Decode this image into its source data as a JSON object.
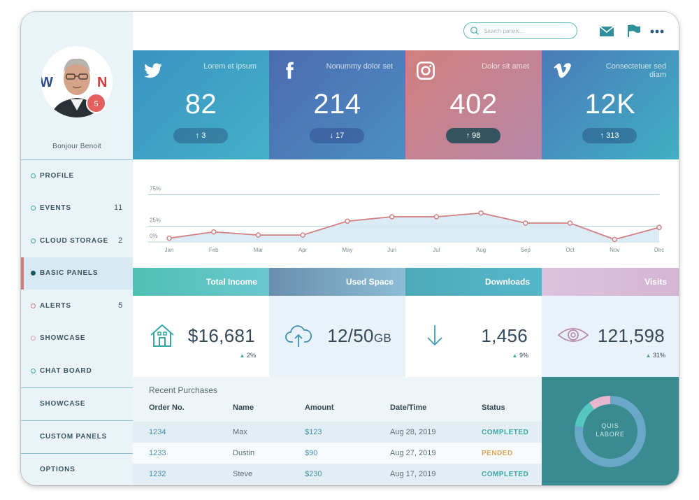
{
  "search": {
    "placeholder": "Search panels..."
  },
  "topbar_icons": [
    "mail-icon",
    "flag-icon",
    "more-icon"
  ],
  "profile": {
    "greeting": "Bonjour Benoit",
    "notifications": "5"
  },
  "nav": [
    {
      "label": "PROFILE",
      "count": ""
    },
    {
      "label": "EVENTS",
      "count": "11"
    },
    {
      "label": "CLOUD STORAGE",
      "count": "2"
    },
    {
      "label": "BASIC PANELS",
      "count": ""
    },
    {
      "label": "ALERTS",
      "count": "5"
    },
    {
      "label": "SHOWCASE",
      "count": ""
    },
    {
      "label": "CHAT BOARD",
      "count": ""
    },
    {
      "label": "SHOWCASE",
      "count": ""
    },
    {
      "label": "CUSTOM PANELS",
      "count": ""
    },
    {
      "label": "OPTIONS",
      "count": ""
    }
  ],
  "tiles": [
    {
      "icon": "twitter-icon",
      "desc": "Lorem et ipsum",
      "value": "82",
      "change": "↑ 3"
    },
    {
      "icon": "facebook-icon",
      "desc": "Nonummy dolor set",
      "value": "214",
      "change": "↓ 17"
    },
    {
      "icon": "instagram-icon",
      "desc": "Dolor sit amet",
      "value": "402",
      "change": "↑ 98"
    },
    {
      "icon": "vimeo-icon",
      "desc": "Consectetuer sed diam",
      "value": "12K",
      "change": "↑ 313"
    }
  ],
  "chart_data": {
    "type": "area",
    "categories": [
      "Jan",
      "Feb",
      "Mar",
      "Apr",
      "May",
      "Jun",
      "Jul",
      "Aug",
      "Sep",
      "Oct",
      "Nov",
      "Dec"
    ],
    "values": [
      6,
      16,
      11,
      11,
      33,
      40,
      40,
      46,
      30,
      30,
      4,
      23
    ],
    "ylim": [
      0,
      100
    ],
    "yticks": [
      "0%",
      "25%",
      "75%"
    ],
    "grid": true,
    "line_color": "#d48081",
    "fill_color": "#d8eaf5"
  },
  "kpis": [
    {
      "title": "Total Income",
      "icon": "house-icon",
      "value": "$16,681",
      "unit": "",
      "change": "2%"
    },
    {
      "title": "Used Space",
      "icon": "cloud-upload-icon",
      "value": "12/50",
      "unit": "GB",
      "change": ""
    },
    {
      "title": "Downloads",
      "icon": "arrow-down-icon",
      "value": "1,456",
      "unit": "",
      "change": "9%"
    },
    {
      "title": "Visits",
      "icon": "eye-icon",
      "value": "121,598",
      "unit": "",
      "change": "31%"
    }
  ],
  "purchases": {
    "title": "Recent Purchases",
    "columns": [
      "Order No.",
      "Name",
      "Amount",
      "Date/Time",
      "Status"
    ],
    "rows": [
      {
        "order": "1234",
        "name": "Max",
        "amount": "$123",
        "date": "Aug 28, 2019",
        "status": "COMPLETED"
      },
      {
        "order": "1233",
        "name": "Dustin",
        "amount": "$90",
        "date": "Aug 27, 2019",
        "status": "PENDED"
      },
      {
        "order": "1232",
        "name": "Steve",
        "amount": "$230",
        "date": "Aug 17, 2019",
        "status": "COMPLETED"
      }
    ],
    "status_colors": {
      "COMPLETED": "#3ba7a3",
      "PENDED": "#d9a55d"
    }
  },
  "donut": {
    "label_line1": "QUIS",
    "label_line2": "LABORE",
    "share": 0.9,
    "colors": {
      "main_arc": "#6aa6c8",
      "secondary_arc": "#55c6c0",
      "remainder": "#e6b7cd"
    }
  },
  "colors": {
    "accent": "#3ba7a3",
    "active_marker": "#d47a7f",
    "twitter_tile": "#3c9fc2",
    "facebook_tile": "#4f73b3",
    "instagram_tile": "#c57d85",
    "vimeo_tile": "#3f79b5"
  }
}
